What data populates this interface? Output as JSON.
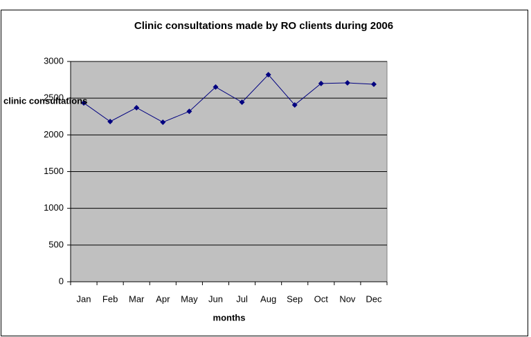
{
  "chart_data": {
    "type": "line",
    "title": "Clinic consultations made by RO clients during 2006",
    "x_label": "months",
    "y_label": "clinic consultations",
    "categories": [
      "Jan",
      "Feb",
      "Mar",
      "Apr",
      "May",
      "Jun",
      "Jul",
      "Aug",
      "Sep",
      "Oct",
      "Nov",
      "Dec"
    ],
    "series": [
      {
        "color": "#000080",
        "values": [
          2435,
          2182,
          2370,
          2173,
          2320,
          2652,
          2445,
          2820,
          2408,
          2700,
          2708,
          2690
        ]
      }
    ],
    "ylim": [
      0,
      3000
    ],
    "yticks": [
      0,
      500,
      1000,
      1500,
      2000,
      2500,
      3000
    ],
    "grid": true,
    "plot_background": "#c0c0c0"
  }
}
